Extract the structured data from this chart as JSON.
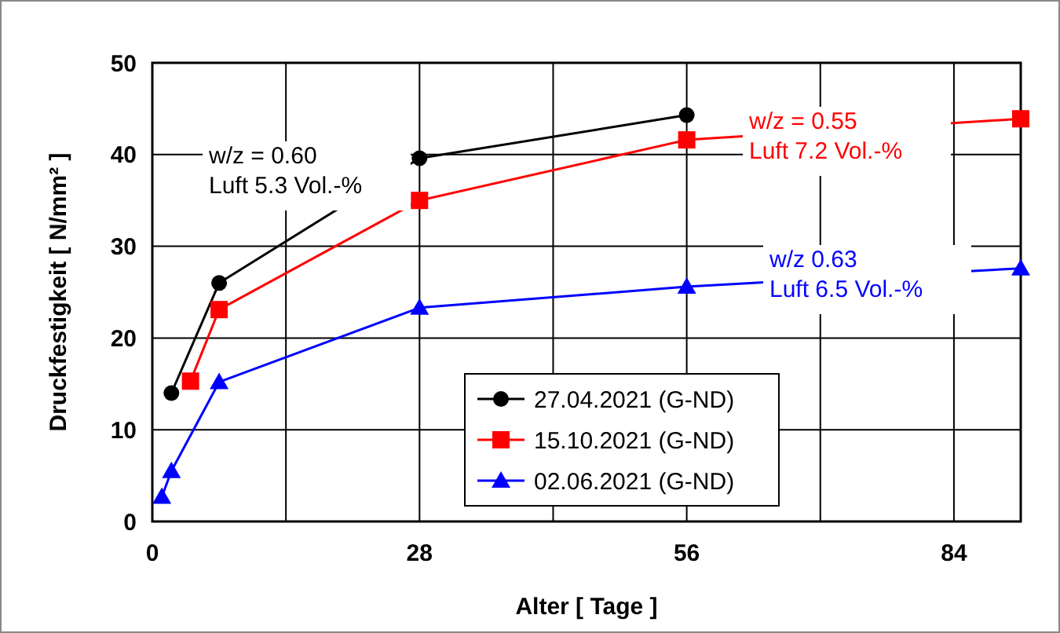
{
  "chart_data": {
    "type": "line",
    "xlabel": "Alter [ Tage ]",
    "ylabel": "Druckfestigkeit [ N/mm² ]",
    "xlim": [
      0,
      91
    ],
    "xticks": [
      0,
      {
        "value": 14,
        "label": null
      },
      28,
      {
        "value": 42,
        "label": null
      },
      56,
      {
        "value": 70,
        "label": null
      },
      84
    ],
    "ylim": [
      0,
      50
    ],
    "yticks": [
      0,
      10,
      20,
      30,
      40,
      50
    ],
    "grid": true,
    "legend": "bottom",
    "line_style": "solid",
    "series": [
      {
        "name": "27.04.2021 (G-ND)",
        "color": "#000000",
        "marker": "circle",
        "x": [
          2,
          7,
          28,
          56
        ],
        "values": [
          14,
          26,
          39.6,
          44.3
        ]
      },
      {
        "name": "15.10.2021 (G-ND)",
        "color": "#ff0000",
        "marker": "square",
        "x": [
          4,
          7,
          28,
          56,
          91
        ],
        "values": [
          15.3,
          23.1,
          35,
          41.6,
          43.9
        ]
      },
      {
        "name": "02.06.2021 (G-ND)",
        "color": "#0000ff",
        "marker": "triangle",
        "x": [
          1,
          2,
          7,
          28,
          56,
          91
        ],
        "values": [
          2.7,
          5.5,
          15.2,
          23.3,
          25.6,
          27.6
        ]
      }
    ],
    "annotations": [
      "w/z = 0.60\nLuft 5.3 Vol.-%",
      "w/z = 0.55\nLuft 7.2 Vol.-%",
      "w/z 0.63\nLuft 6.5 Vol.-%"
    ]
  }
}
